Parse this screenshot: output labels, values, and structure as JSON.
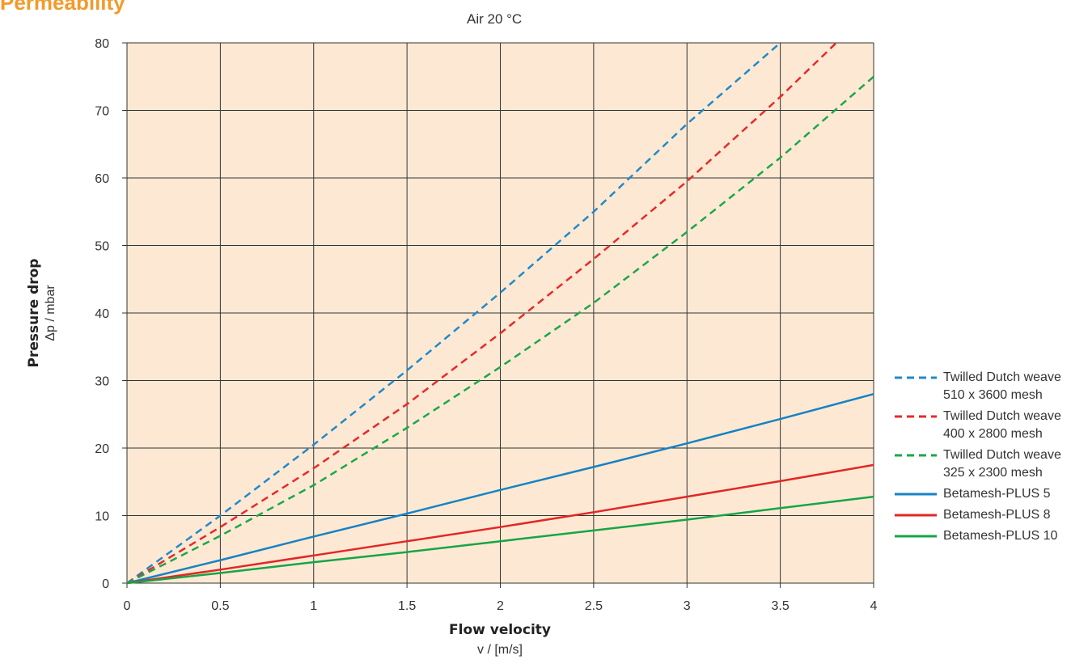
{
  "chart_data": {
    "type": "line",
    "title": "Permeability",
    "subtitle": "Air 20 °C",
    "xlabel": "Flow velocity",
    "xunit": "v / [m/s]",
    "ylabel": "Pressure drop",
    "yunit": "Δp / mbar",
    "xlim": [
      0,
      4
    ],
    "ylim": [
      0,
      80
    ],
    "xticks": [
      "0",
      "0.5",
      "1",
      "1.5",
      "2",
      "2.5",
      "3",
      "3.5",
      "4"
    ],
    "yticks": [
      "0",
      "10",
      "20",
      "30",
      "40",
      "50",
      "60",
      "70",
      "80"
    ],
    "grid": true,
    "plot_background": "#fde9d3",
    "legend_position": "right",
    "series": [
      {
        "name": "Twilled Dutch weave\n510 x 3600 mesh",
        "color": "#1f8acb",
        "dash": true,
        "x": [
          0,
          0.5,
          1,
          1.5,
          2,
          2.5,
          3,
          3.5
        ],
        "y": [
          0,
          10,
          20.5,
          31.5,
          43,
          55,
          68,
          81
        ]
      },
      {
        "name": "Twilled Dutch weave\n400 x 2800 mesh",
        "color": "#e62a2a",
        "dash": true,
        "x": [
          0,
          0.5,
          1,
          1.5,
          2,
          2.5,
          3,
          3.5,
          3.8
        ],
        "y": [
          0,
          8.3,
          17,
          26.5,
          37,
          48,
          59.5,
          72,
          80
        ]
      },
      {
        "name": "Twilled Dutch weave\n325 x 2300 mesh",
        "color": "#1aa84a",
        "dash": true,
        "x": [
          0,
          0.5,
          1,
          1.5,
          2,
          2.5,
          3,
          3.5,
          4
        ],
        "y": [
          0,
          7,
          14.5,
          23,
          32,
          41.5,
          52,
          63,
          75
        ]
      },
      {
        "name": "Betamesh-PLUS 5",
        "color": "#1682c4",
        "dash": false,
        "x": [
          0,
          0.5,
          1,
          1.5,
          2,
          2.5,
          3,
          3.5,
          4
        ],
        "y": [
          0,
          3.4,
          6.9,
          10.3,
          13.8,
          17.2,
          20.7,
          24.3,
          28
        ]
      },
      {
        "name": "Betamesh-PLUS 8",
        "color": "#e32626",
        "dash": false,
        "x": [
          0,
          0.5,
          1,
          1.5,
          2,
          2.5,
          3,
          3.5,
          4
        ],
        "y": [
          0,
          2.0,
          4.1,
          6.2,
          8.3,
          10.5,
          12.8,
          15.1,
          17.5
        ]
      },
      {
        "name": "Betamesh-PLUS 10",
        "color": "#16a546",
        "dash": false,
        "x": [
          0,
          0.5,
          1,
          1.5,
          2,
          2.5,
          3,
          3.5,
          4
        ],
        "y": [
          0,
          1.5,
          3.1,
          4.6,
          6.2,
          7.8,
          9.4,
          11.1,
          12.8
        ]
      }
    ]
  }
}
